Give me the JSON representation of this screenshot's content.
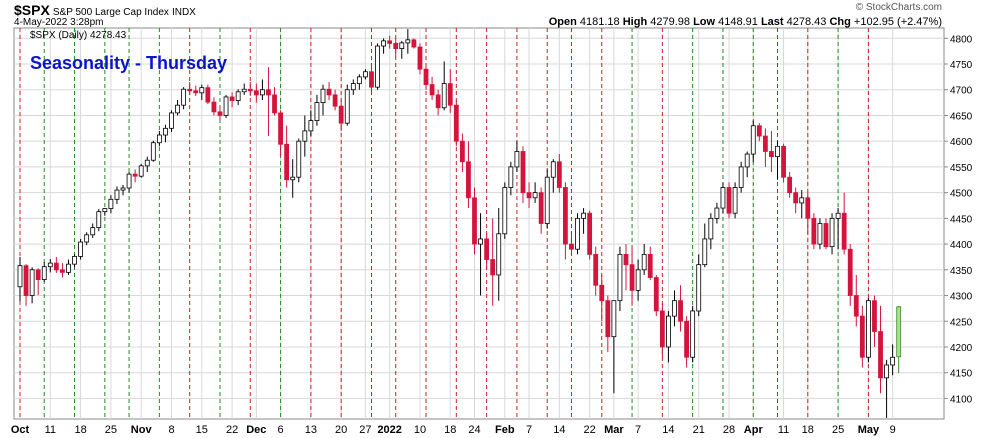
{
  "header": {
    "symbol": "$SPX",
    "name": "S&P 500 Large Cap Index",
    "exchange": "INDX",
    "date": "4-May-2022 3:28pm",
    "brand": "© StockCharts.com",
    "quote": {
      "open_label": "Open",
      "open": "4181.18",
      "high_label": "High",
      "high": "4279.98",
      "low_label": "Low",
      "low": "4148.91",
      "last_label": "Last",
      "last": "4278.43",
      "chg_label": "Chg",
      "chg": "+102.95 (+2.47%)"
    }
  },
  "colors": {
    "up": "#000000",
    "down": "#d4143c",
    "current": "#a8e08c",
    "title": "#0a14c8",
    "grid": "#d8d8d8",
    "red_marker": "#cc2020",
    "green_marker": "#1e8c1e"
  },
  "chart_data": {
    "type": "candlestick",
    "title": "Seasonality - Thursday",
    "series_label": "$SPX (Daily) 4278.43",
    "ylim": [
      4060,
      4820
    ],
    "yticks": [
      4100,
      4150,
      4200,
      4250,
      4300,
      4350,
      4400,
      4450,
      4500,
      4550,
      4600,
      4650,
      4700,
      4750,
      4800
    ],
    "xtick_labels": [
      {
        "label": "Oct",
        "bold": true,
        "i": 0
      },
      {
        "label": "11",
        "bold": false,
        "i": 5
      },
      {
        "label": "18",
        "bold": false,
        "i": 10
      },
      {
        "label": "25",
        "bold": false,
        "i": 15
      },
      {
        "label": "Nov",
        "bold": true,
        "i": 20
      },
      {
        "label": "8",
        "bold": false,
        "i": 25
      },
      {
        "label": "15",
        "bold": false,
        "i": 30
      },
      {
        "label": "22",
        "bold": false,
        "i": 35
      },
      {
        "label": "Dec",
        "bold": true,
        "i": 39
      },
      {
        "label": "6",
        "bold": false,
        "i": 43
      },
      {
        "label": "13",
        "bold": false,
        "i": 48
      },
      {
        "label": "20",
        "bold": false,
        "i": 53
      },
      {
        "label": "27",
        "bold": false,
        "i": 57
      },
      {
        "label": "2022",
        "bold": true,
        "i": 61
      },
      {
        "label": "10",
        "bold": false,
        "i": 66
      },
      {
        "label": "18",
        "bold": false,
        "i": 71
      },
      {
        "label": "24",
        "bold": false,
        "i": 75
      },
      {
        "label": "Feb",
        "bold": true,
        "i": 80
      },
      {
        "label": "7",
        "bold": false,
        "i": 84
      },
      {
        "label": "14",
        "bold": false,
        "i": 89
      },
      {
        "label": "22",
        "bold": false,
        "i": 94
      },
      {
        "label": "Mar",
        "bold": true,
        "i": 98
      },
      {
        "label": "7",
        "bold": false,
        "i": 102
      },
      {
        "label": "14",
        "bold": false,
        "i": 107
      },
      {
        "label": "21",
        "bold": false,
        "i": 112
      },
      {
        "label": "28",
        "bold": false,
        "i": 117
      },
      {
        "label": "Apr",
        "bold": true,
        "i": 121
      },
      {
        "label": "11",
        "bold": false,
        "i": 126
      },
      {
        "label": "18",
        "bold": false,
        "i": 130
      },
      {
        "label": "25",
        "bold": false,
        "i": 135
      },
      {
        "label": "May",
        "bold": true,
        "i": 140
      },
      {
        "label": "9",
        "bold": false,
        "i": 144
      }
    ],
    "thursday_markers": [
      {
        "i": 0,
        "result": "down"
      },
      {
        "i": 4,
        "result": "up"
      },
      {
        "i": 9,
        "result": "up"
      },
      {
        "i": 14,
        "result": "up"
      },
      {
        "i": 18,
        "result": "up"
      },
      {
        "i": 23,
        "result": "up"
      },
      {
        "i": 28,
        "result": "down"
      },
      {
        "i": 33,
        "result": "up"
      },
      {
        "i": 38,
        "result": "down"
      },
      {
        "i": 43,
        "result": "up"
      },
      {
        "i": 48,
        "result": "down"
      },
      {
        "i": 53,
        "result": "down"
      },
      {
        "i": 58,
        "result": "down"
      },
      {
        "i": 62,
        "result": "down"
      },
      {
        "i": 67,
        "result": "down"
      },
      {
        "i": 72,
        "result": "down"
      },
      {
        "i": 77,
        "result": "down"
      },
      {
        "i": 82,
        "result": "down"
      },
      {
        "i": 87,
        "result": "down"
      },
      {
        "i": 91,
        "result": "down"
      },
      {
        "i": 96,
        "result": "down"
      },
      {
        "i": 101,
        "result": "up"
      },
      {
        "i": 106,
        "result": "down"
      },
      {
        "i": 111,
        "result": "up"
      },
      {
        "i": 116,
        "result": "up"
      },
      {
        "i": 121,
        "result": "up"
      },
      {
        "i": 125,
        "result": "down"
      },
      {
        "i": 130,
        "result": "down"
      },
      {
        "i": 135,
        "result": "up"
      },
      {
        "i": 140,
        "result": "down"
      }
    ],
    "candles": [
      [
        4317,
        4375,
        4289,
        4358
      ],
      [
        4358,
        4361,
        4280,
        4300
      ],
      [
        4300,
        4355,
        4285,
        4350
      ],
      [
        4350,
        4353,
        4301,
        4331
      ],
      [
        4331,
        4365,
        4327,
        4356
      ],
      [
        4356,
        4371,
        4345,
        4363
      ],
      [
        4363,
        4375,
        4344,
        4350
      ],
      [
        4350,
        4363,
        4335,
        4345
      ],
      [
        4345,
        4370,
        4340,
        4361
      ],
      [
        4361,
        4380,
        4355,
        4376
      ],
      [
        4376,
        4410,
        4370,
        4404
      ],
      [
        4404,
        4423,
        4398,
        4418
      ],
      [
        4418,
        4440,
        4412,
        4432
      ],
      [
        4432,
        4468,
        4425,
        4463
      ],
      [
        4463,
        4470,
        4455,
        4469
      ],
      [
        4469,
        4495,
        4460,
        4487
      ],
      [
        4487,
        4512,
        4478,
        4505
      ],
      [
        4505,
        4515,
        4495,
        4509
      ],
      [
        4509,
        4540,
        4500,
        4536
      ],
      [
        4536,
        4545,
        4520,
        4532
      ],
      [
        4532,
        4556,
        4529,
        4552
      ],
      [
        4552,
        4570,
        4540,
        4563
      ],
      [
        4563,
        4601,
        4560,
        4597
      ],
      [
        4597,
        4620,
        4590,
        4612
      ],
      [
        4612,
        4632,
        4598,
        4625
      ],
      [
        4625,
        4660,
        4618,
        4655
      ],
      [
        4655,
        4680,
        4650,
        4670
      ],
      [
        4670,
        4705,
        4662,
        4701
      ],
      [
        4701,
        4715,
        4690,
        4698
      ],
      [
        4698,
        4708,
        4688,
        4694
      ],
      [
        4694,
        4710,
        4680,
        4704
      ],
      [
        4704,
        4710,
        4672,
        4676
      ],
      [
        4676,
        4685,
        4650,
        4657
      ],
      [
        4657,
        4668,
        4640,
        4650
      ],
      [
        4650,
        4690,
        4645,
        4686
      ],
      [
        4686,
        4695,
        4666,
        4679
      ],
      [
        4679,
        4701,
        4670,
        4696
      ],
      [
        4696,
        4712,
        4690,
        4701
      ],
      [
        4701,
        4715,
        4688,
        4698
      ],
      [
        4698,
        4712,
        4675,
        4690
      ],
      [
        4690,
        4720,
        4680,
        4700
      ],
      [
        4700,
        4744,
        4610,
        4690
      ],
      [
        4690,
        4705,
        4650,
        4655
      ],
      [
        4655,
        4660,
        4570,
        4594
      ],
      [
        4594,
        4630,
        4510,
        4525
      ],
      [
        4525,
        4565,
        4490,
        4530
      ],
      [
        4530,
        4605,
        4520,
        4600
      ],
      [
        4600,
        4650,
        4570,
        4620
      ],
      [
        4620,
        4660,
        4610,
        4640
      ],
      [
        4640,
        4690,
        4630,
        4675
      ],
      [
        4675,
        4710,
        4650,
        4701
      ],
      [
        4701,
        4715,
        4680,
        4690
      ],
      [
        4690,
        4700,
        4660,
        4668
      ],
      [
        4668,
        4680,
        4620,
        4635
      ],
      [
        4635,
        4710,
        4630,
        4700
      ],
      [
        4700,
        4720,
        4690,
        4712
      ],
      [
        4712,
        4730,
        4700,
        4725
      ],
      [
        4725,
        4740,
        4720,
        4735
      ],
      [
        4735,
        4750,
        4690,
        4705
      ],
      [
        4705,
        4790,
        4700,
        4785
      ],
      [
        4785,
        4800,
        4770,
        4795
      ],
      [
        4795,
        4805,
        4780,
        4790
      ],
      [
        4790,
        4800,
        4765,
        4780
      ],
      [
        4780,
        4795,
        4760,
        4791
      ],
      [
        4791,
        4818,
        4770,
        4797
      ],
      [
        4797,
        4800,
        4780,
        4783
      ],
      [
        4783,
        4790,
        4730,
        4740
      ],
      [
        4740,
        4745,
        4700,
        4710
      ],
      [
        4710,
        4725,
        4680,
        4690
      ],
      [
        4690,
        4700,
        4650,
        4665
      ],
      [
        4665,
        4755,
        4660,
        4712
      ],
      [
        4712,
        4740,
        4655,
        4670
      ],
      [
        4670,
        4680,
        4590,
        4600
      ],
      [
        4600,
        4615,
        4540,
        4560
      ],
      [
        4560,
        4600,
        4470,
        4490
      ],
      [
        4490,
        4510,
        4380,
        4400
      ],
      [
        4400,
        4460,
        4300,
        4410
      ],
      [
        4410,
        4420,
        4350,
        4370
      ],
      [
        4370,
        4450,
        4280,
        4340
      ],
      [
        4340,
        4470,
        4290,
        4420
      ],
      [
        4420,
        4520,
        4410,
        4510
      ],
      [
        4510,
        4560,
        4495,
        4550
      ],
      [
        4550,
        4600,
        4540,
        4580
      ],
      [
        4580,
        4590,
        4480,
        4500
      ],
      [
        4500,
        4520,
        4470,
        4490
      ],
      [
        4490,
        4520,
        4480,
        4500
      ],
      [
        4500,
        4510,
        4420,
        4440
      ],
      [
        4440,
        4545,
        4430,
        4530
      ],
      [
        4530,
        4565,
        4500,
        4560
      ],
      [
        4560,
        4575,
        4500,
        4510
      ],
      [
        4510,
        4520,
        4370,
        4400
      ],
      [
        4400,
        4425,
        4380,
        4390
      ],
      [
        4390,
        4460,
        4380,
        4450
      ],
      [
        4450,
        4470,
        4420,
        4460
      ],
      [
        4460,
        4465,
        4370,
        4380
      ],
      [
        4380,
        4395,
        4300,
        4320
      ],
      [
        4320,
        4340,
        4250,
        4290
      ],
      [
        4290,
        4300,
        4190,
        4220
      ],
      [
        4220,
        4290,
        4110,
        4290
      ],
      [
        4290,
        4395,
        4270,
        4380
      ],
      [
        4380,
        4400,
        4310,
        4360
      ],
      [
        4360,
        4395,
        4280,
        4310
      ],
      [
        4310,
        4370,
        4290,
        4350
      ],
      [
        4350,
        4400,
        4340,
        4380
      ],
      [
        4380,
        4395,
        4330,
        4335
      ],
      [
        4335,
        4340,
        4260,
        4270
      ],
      [
        4270,
        4285,
        4180,
        4200
      ],
      [
        4200,
        4270,
        4170,
        4260
      ],
      [
        4260,
        4310,
        4240,
        4290
      ],
      [
        4290,
        4320,
        4230,
        4250
      ],
      [
        4250,
        4260,
        4160,
        4180
      ],
      [
        4180,
        4280,
        4170,
        4270
      ],
      [
        4270,
        4380,
        4260,
        4360
      ],
      [
        4360,
        4440,
        4355,
        4410
      ],
      [
        4410,
        4460,
        4390,
        4450
      ],
      [
        4450,
        4480,
        4440,
        4470
      ],
      [
        4470,
        4520,
        4460,
        4510
      ],
      [
        4510,
        4520,
        4450,
        4460
      ],
      [
        4460,
        4520,
        4450,
        4510
      ],
      [
        4510,
        4560,
        4500,
        4550
      ],
      [
        4550,
        4580,
        4530,
        4575
      ],
      [
        4575,
        4640,
        4560,
        4630
      ],
      [
        4630,
        4635,
        4600,
        4610
      ],
      [
        4610,
        4625,
        4550,
        4580
      ],
      [
        4580,
        4620,
        4540,
        4570
      ],
      [
        4570,
        4600,
        4525,
        4590
      ],
      [
        4590,
        4595,
        4520,
        4530
      ],
      [
        4530,
        4540,
        4490,
        4500
      ],
      [
        4500,
        4510,
        4460,
        4480
      ],
      [
        4480,
        4505,
        4450,
        4490
      ],
      [
        4490,
        4500,
        4420,
        4450
      ],
      [
        4450,
        4460,
        4390,
        4400
      ],
      [
        4400,
        4450,
        4390,
        4440
      ],
      [
        4440,
        4450,
        4390,
        4395
      ],
      [
        4395,
        4460,
        4380,
        4450
      ],
      [
        4450,
        4470,
        4390,
        4460
      ],
      [
        4460,
        4500,
        4380,
        4390
      ],
      [
        4390,
        4400,
        4280,
        4300
      ],
      [
        4300,
        4340,
        4240,
        4260
      ],
      [
        4260,
        4280,
        4160,
        4180
      ],
      [
        4180,
        4295,
        4170,
        4290
      ],
      [
        4290,
        4300,
        4200,
        4230
      ],
      [
        4230,
        4280,
        4110,
        4140
      ],
      [
        4140,
        4175,
        4062,
        4165
      ],
      [
        4165,
        4205,
        4145,
        4180
      ],
      [
        4181,
        4280,
        4149,
        4278
      ]
    ]
  }
}
